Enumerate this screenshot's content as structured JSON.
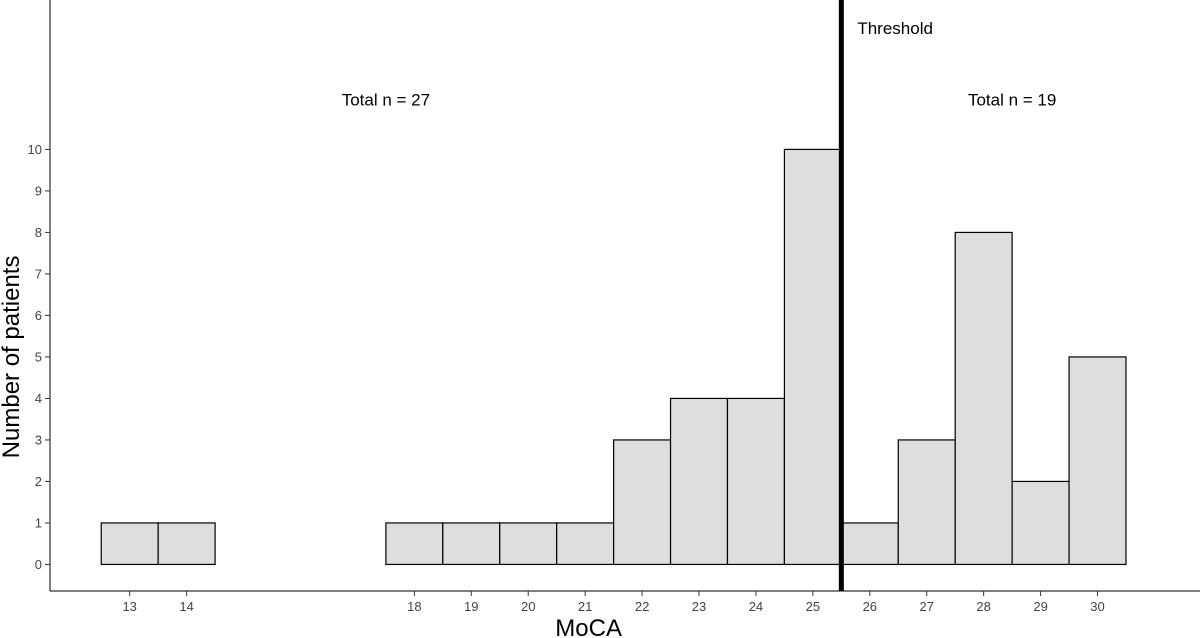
{
  "chart_data": {
    "type": "histogram",
    "xlabel": "MoCA",
    "ylabel": "Number of patients",
    "x_tick_labels": [
      "13",
      "14",
      "18",
      "19",
      "20",
      "21",
      "22",
      "23",
      "24",
      "25",
      "26",
      "27",
      "28",
      "29",
      "30"
    ],
    "y_tick_labels": [
      "0",
      "1",
      "2",
      "3",
      "4",
      "5",
      "6",
      "7",
      "8",
      "9",
      "10"
    ],
    "xlim": [
      11.6,
      31.8
    ],
    "ylim": [
      -0.64,
      13.6
    ],
    "bins": [
      {
        "x": 13,
        "count": 1
      },
      {
        "x": 14,
        "count": 1
      },
      {
        "x": 15,
        "count": 0
      },
      {
        "x": 16,
        "count": 0
      },
      {
        "x": 17,
        "count": 0
      },
      {
        "x": 18,
        "count": 1
      },
      {
        "x": 19,
        "count": 1
      },
      {
        "x": 20,
        "count": 1
      },
      {
        "x": 21,
        "count": 1
      },
      {
        "x": 22,
        "count": 3
      },
      {
        "x": 23,
        "count": 4
      },
      {
        "x": 24,
        "count": 4
      },
      {
        "x": 25,
        "count": 10
      },
      {
        "x": 26,
        "count": 1
      },
      {
        "x": 27,
        "count": 3
      },
      {
        "x": 28,
        "count": 8
      },
      {
        "x": 29,
        "count": 2
      },
      {
        "x": 30,
        "count": 5
      }
    ],
    "threshold": {
      "x": 25.5,
      "label": "Threshold"
    },
    "annotations": [
      {
        "text": "Total n = 27",
        "x": 17.5,
        "y": 11.2
      },
      {
        "text": "Total n = 19",
        "x": 28.5,
        "y": 11.2
      }
    ],
    "bar_fill": "#dedede",
    "bar_stroke": "#000000",
    "threshold_color": "#000000",
    "grid": false
  }
}
